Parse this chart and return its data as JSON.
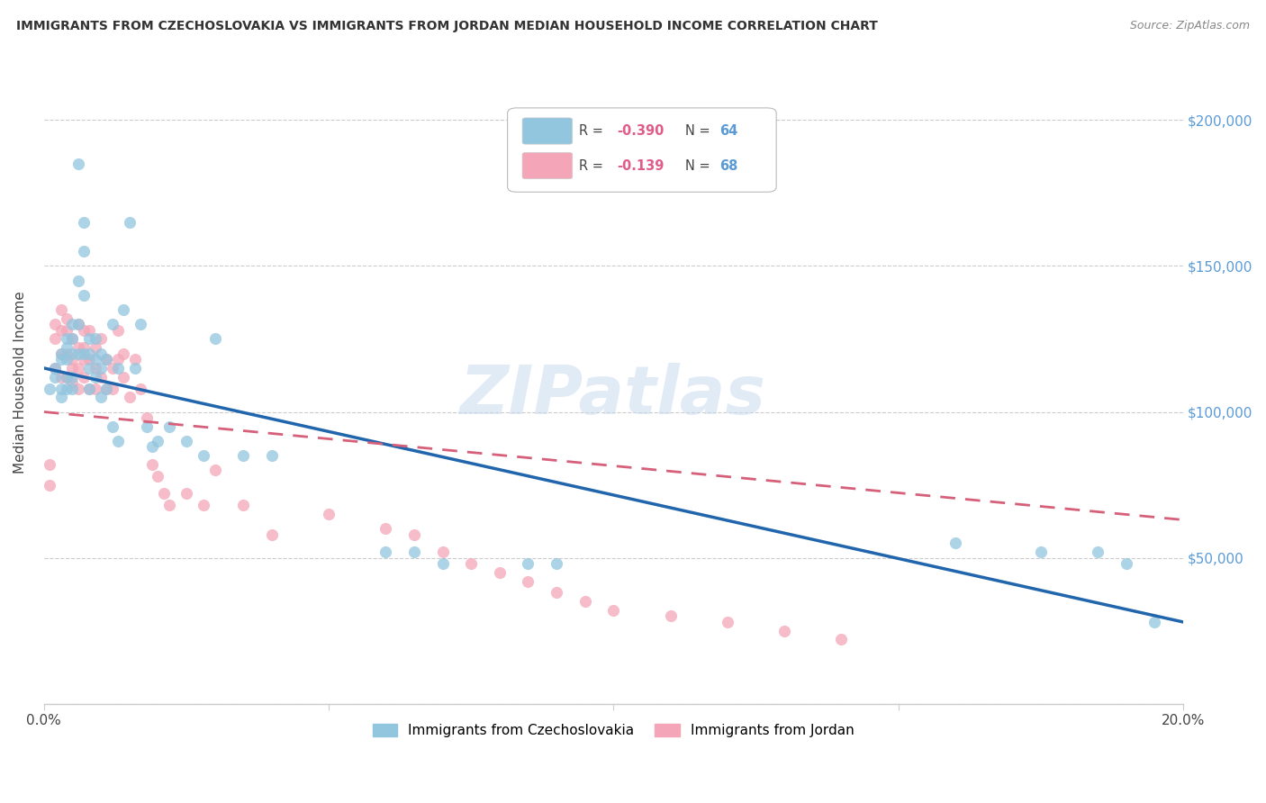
{
  "title": "IMMIGRANTS FROM CZECHOSLOVAKIA VS IMMIGRANTS FROM JORDAN MEDIAN HOUSEHOLD INCOME CORRELATION CHART",
  "source": "Source: ZipAtlas.com",
  "ylabel": "Median Household Income",
  "xlim": [
    0.0,
    0.2
  ],
  "ylim": [
    0,
    220000
  ],
  "blue_color": "#92c5de",
  "pink_color": "#f4a6b8",
  "blue_line_color": "#2166ac",
  "pink_line_color": "#d6607a",
  "watermark": "ZIPatlas",
  "legend_label_blue": "Immigrants from Czechoslovakia",
  "legend_label_pink": "Immigrants from Jordan",
  "blue_line_x0": 0.0,
  "blue_line_y0": 115000,
  "blue_line_x1": 0.2,
  "blue_line_y1": 28000,
  "pink_line_x0": 0.0,
  "pink_line_y0": 100000,
  "pink_line_x1": 0.2,
  "pink_line_y1": 63000,
  "blue_scatter_x": [
    0.001,
    0.002,
    0.002,
    0.003,
    0.003,
    0.003,
    0.003,
    0.004,
    0.004,
    0.004,
    0.004,
    0.004,
    0.005,
    0.005,
    0.005,
    0.005,
    0.005,
    0.006,
    0.006,
    0.006,
    0.006,
    0.007,
    0.007,
    0.007,
    0.007,
    0.008,
    0.008,
    0.008,
    0.008,
    0.009,
    0.009,
    0.009,
    0.01,
    0.01,
    0.01,
    0.011,
    0.011,
    0.012,
    0.012,
    0.013,
    0.013,
    0.014,
    0.015,
    0.016,
    0.017,
    0.018,
    0.019,
    0.02,
    0.022,
    0.025,
    0.028,
    0.03,
    0.035,
    0.04,
    0.06,
    0.065,
    0.07,
    0.085,
    0.09,
    0.16,
    0.175,
    0.185,
    0.19,
    0.195
  ],
  "blue_scatter_y": [
    108000,
    115000,
    112000,
    120000,
    118000,
    108000,
    105000,
    125000,
    122000,
    118000,
    112000,
    108000,
    130000,
    125000,
    120000,
    112000,
    108000,
    185000,
    145000,
    130000,
    120000,
    165000,
    155000,
    140000,
    120000,
    125000,
    120000,
    115000,
    108000,
    125000,
    118000,
    112000,
    120000,
    115000,
    105000,
    118000,
    108000,
    130000,
    95000,
    115000,
    90000,
    135000,
    165000,
    115000,
    130000,
    95000,
    88000,
    90000,
    95000,
    90000,
    85000,
    125000,
    85000,
    85000,
    52000,
    52000,
    48000,
    48000,
    48000,
    55000,
    52000,
    52000,
    48000,
    28000
  ],
  "pink_scatter_x": [
    0.001,
    0.001,
    0.002,
    0.002,
    0.002,
    0.003,
    0.003,
    0.003,
    0.003,
    0.004,
    0.004,
    0.004,
    0.004,
    0.005,
    0.005,
    0.005,
    0.005,
    0.006,
    0.006,
    0.006,
    0.006,
    0.007,
    0.007,
    0.007,
    0.007,
    0.008,
    0.008,
    0.008,
    0.009,
    0.009,
    0.009,
    0.01,
    0.01,
    0.011,
    0.011,
    0.012,
    0.012,
    0.013,
    0.013,
    0.014,
    0.014,
    0.015,
    0.016,
    0.017,
    0.018,
    0.019,
    0.02,
    0.021,
    0.022,
    0.025,
    0.028,
    0.03,
    0.035,
    0.04,
    0.05,
    0.06,
    0.065,
    0.07,
    0.075,
    0.08,
    0.085,
    0.09,
    0.095,
    0.1,
    0.11,
    0.12,
    0.13,
    0.14
  ],
  "pink_scatter_y": [
    82000,
    75000,
    130000,
    125000,
    115000,
    135000,
    128000,
    120000,
    112000,
    132000,
    128000,
    120000,
    112000,
    125000,
    118000,
    115000,
    110000,
    130000,
    122000,
    115000,
    108000,
    128000,
    122000,
    118000,
    112000,
    128000,
    118000,
    108000,
    122000,
    115000,
    108000,
    125000,
    112000,
    118000,
    108000,
    115000,
    108000,
    128000,
    118000,
    120000,
    112000,
    105000,
    118000,
    108000,
    98000,
    82000,
    78000,
    72000,
    68000,
    72000,
    68000,
    80000,
    68000,
    58000,
    65000,
    60000,
    58000,
    52000,
    48000,
    45000,
    42000,
    38000,
    35000,
    32000,
    30000,
    28000,
    25000,
    22000
  ]
}
